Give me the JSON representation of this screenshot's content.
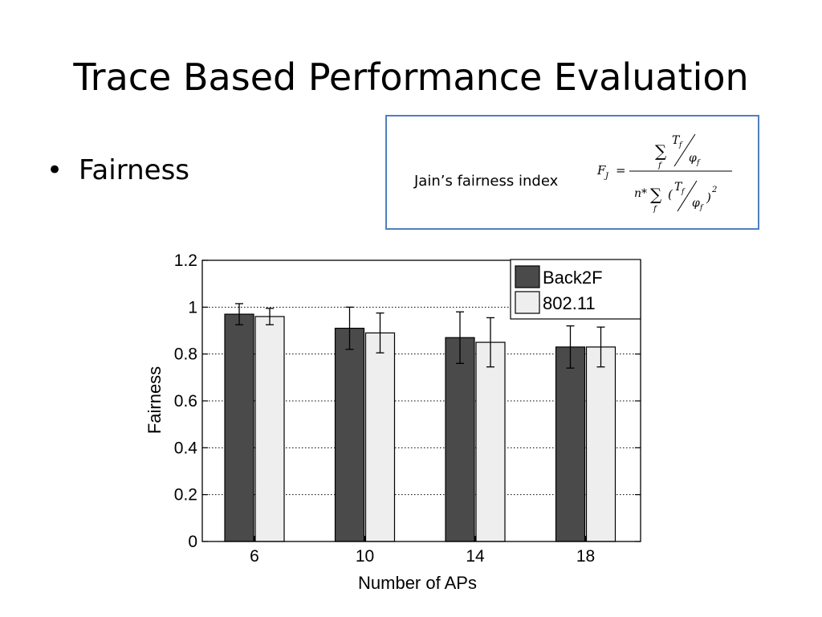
{
  "slide": {
    "title": "Trace Based Performance Evaluation",
    "bullet_char": "•",
    "bullet": "Fairness"
  },
  "formula_box": {
    "label": "Jain’s fairness index",
    "formula": {
      "lhs": "F",
      "lhs_sub": "J",
      "equals": "=",
      "sum": "∑",
      "sum_sub": "f",
      "T": "T",
      "T_sub": "f",
      "phi": "φ",
      "phi_sub": "f",
      "n_star": "n*",
      "open_paren": "(",
      "close_paren": ")",
      "exponent": "2"
    },
    "border_color": "#4f81bd"
  },
  "chart_data": {
    "type": "bar",
    "xlabel": "Number of APs",
    "ylabel": "Fairness",
    "categories": [
      "6",
      "10",
      "14",
      "18"
    ],
    "ylim": [
      0,
      1.2
    ],
    "yticks": [
      0,
      0.2,
      0.4,
      0.6,
      0.8,
      1,
      1.2
    ],
    "ytick_labels": [
      "0",
      "0.2",
      "0.4",
      "0.6",
      "0.8",
      "1",
      "1.2"
    ],
    "grid": true,
    "legend_position": "top-right",
    "series": [
      {
        "name": "Back2F",
        "color": "#4a4a4a",
        "values": [
          0.97,
          0.91,
          0.87,
          0.83
        ],
        "error": [
          0.045,
          0.09,
          0.11,
          0.09
        ]
      },
      {
        "name": "802.11",
        "color": "#eeeeee",
        "values": [
          0.96,
          0.89,
          0.85,
          0.83
        ],
        "error": [
          0.035,
          0.085,
          0.105,
          0.085
        ]
      }
    ]
  }
}
